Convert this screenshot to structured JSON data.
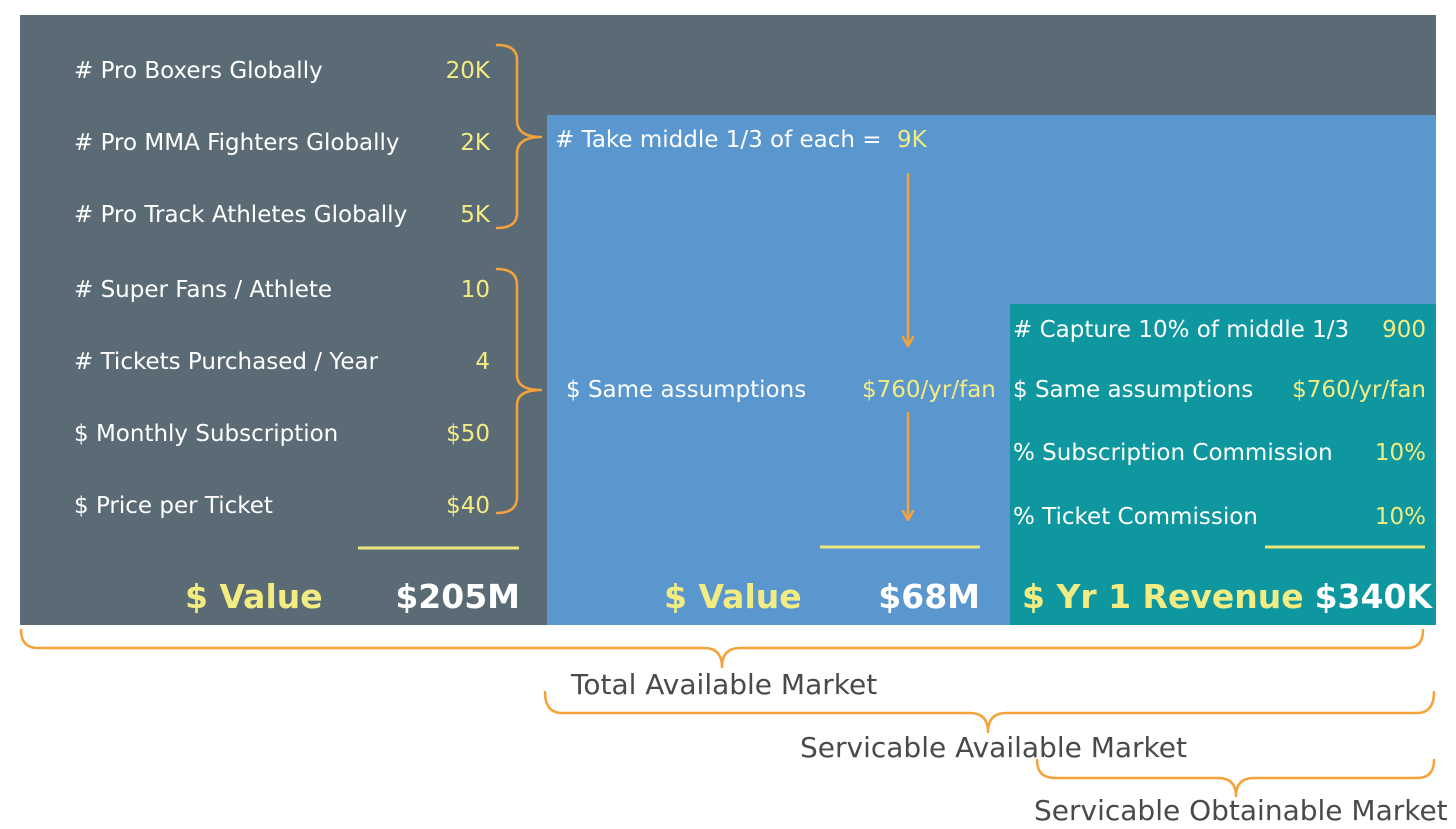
{
  "tam": {
    "rows": [
      {
        "label": "# Pro Boxers Globally",
        "value": "20K"
      },
      {
        "label": "# Pro MMA Fighters Globally",
        "value": "2K"
      },
      {
        "label": "# Pro Track Athletes Globally",
        "value": "5K"
      },
      {
        "label": "# Super Fans / Athlete",
        "value": "10"
      },
      {
        "label": "# Tickets Purchased / Year",
        "value": "4"
      },
      {
        "label": "$ Monthly Subscription",
        "value": "$50"
      },
      {
        "label": "$ Price per Ticket",
        "value": "$40"
      }
    ],
    "total_label": "$ Value",
    "total_value": "$205M"
  },
  "sam": {
    "take_label": "# Take middle 1/3 of each =",
    "take_value": "9K",
    "same_label": "$ Same assumptions",
    "same_value": "$760/yr/fan",
    "total_label": "$ Value",
    "total_value": "$68M"
  },
  "som": {
    "rows": [
      {
        "label": "# Capture 10% of middle 1/3",
        "value": "900"
      },
      {
        "label": "$ Same assumptions",
        "value": "$760/yr/fan"
      },
      {
        "label": "% Subscription Commission",
        "value": "10%"
      },
      {
        "label": "% Ticket Commission",
        "value": "10%"
      }
    ],
    "total_label": "$ Yr 1 Revenue",
    "total_value": "$340K"
  },
  "markets": {
    "tam": "Total Available Market",
    "sam": "Servicable Available Market",
    "som": "Servicable Obtainable Market"
  },
  "colors": {
    "tam_bg": "#5a6b76",
    "sam_bg": "#5b97cf",
    "som_bg": "#0f97a0",
    "value_yellow": "#f2ec83",
    "bracket_orange": "#f5a23a"
  }
}
